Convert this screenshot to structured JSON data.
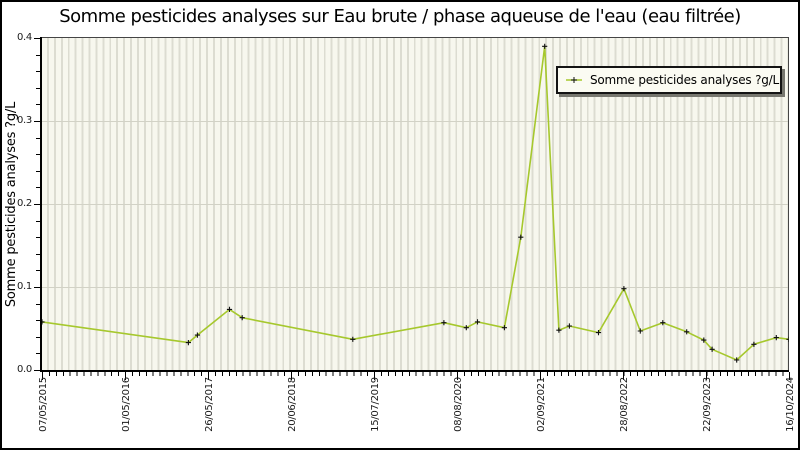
{
  "title": "Somme pesticides analyses sur Eau brute / phase aqueuse de l'eau (eau filtrée)",
  "legend": {
    "series_label": "Somme pesticides analyses ?g/L",
    "position": "top-right"
  },
  "colors": {
    "line": "#a6c82d",
    "marker": "#111111",
    "plot_bg": "#f7f7ee",
    "stripe": "#dcdcd1",
    "grid": "#d2d2c6",
    "axis": "#000000",
    "legend_bg": "#fbfbf2",
    "legend_shadow": "#77776f"
  },
  "chart_data": {
    "type": "line",
    "title": "Somme pesticides analyses sur Eau brute / phase aqueuse de l'eau (eau filtrée)",
    "xlabel": "",
    "ylabel": "Somme pesticides analyses ?g/L",
    "ylim": [
      0.0,
      0.4
    ],
    "y_tick_labels": [
      "0.0",
      "0.1",
      "0.2",
      "0.3",
      "0.4"
    ],
    "y_minor_step": 0.02,
    "grid_y": [
      0.1,
      0.2,
      0.3
    ],
    "x_tick_labels": [
      "07/05/2015",
      "01/05/2016",
      "26/05/2017",
      "20/06/2018",
      "15/07/2019",
      "08/08/2020",
      "02/09/2021",
      "28/08/2022",
      "22/09/2023",
      "16/10/2024"
    ],
    "legend_position": "top-right",
    "grid": "vertical-stripes-minor, horizontal-major",
    "series": [
      {
        "name": "Somme pesticides analyses ?g/L",
        "marker": "plus",
        "points": [
          {
            "x_frac": 0.0,
            "date_est": "07/05/2015",
            "value": 0.058
          },
          {
            "x_frac": 0.196,
            "date_est": "2017-02",
            "value": 0.033
          },
          {
            "x_frac": 0.208,
            "date_est": "2017-04",
            "value": 0.042
          },
          {
            "x_frac": 0.251,
            "date_est": "2017-09",
            "value": 0.073
          },
          {
            "x_frac": 0.268,
            "date_est": "2017-11",
            "value": 0.063
          },
          {
            "x_frac": 0.416,
            "date_est": "2019-04",
            "value": 0.037
          },
          {
            "x_frac": 0.538,
            "date_est": "2020-06",
            "value": 0.057
          },
          {
            "x_frac": 0.568,
            "date_est": "2020-09",
            "value": 0.051
          },
          {
            "x_frac": 0.583,
            "date_est": "2020-11",
            "value": 0.058
          },
          {
            "x_frac": 0.619,
            "date_est": "2021-03",
            "value": 0.051
          },
          {
            "x_frac": 0.641,
            "date_est": "2021-06",
            "value": 0.16
          },
          {
            "x_frac": 0.673,
            "date_est": "02/09/2021",
            "value": 0.39
          },
          {
            "x_frac": 0.692,
            "date_est": "2021-11",
            "value": 0.048
          },
          {
            "x_frac": 0.706,
            "date_est": "2022-01",
            "value": 0.053
          },
          {
            "x_frac": 0.745,
            "date_est": "2022-05",
            "value": 0.045
          },
          {
            "x_frac": 0.779,
            "date_est": "28/08/2022",
            "value": 0.098
          },
          {
            "x_frac": 0.801,
            "date_est": "2022-11",
            "value": 0.047
          },
          {
            "x_frac": 0.831,
            "date_est": "2023-02",
            "value": 0.057
          },
          {
            "x_frac": 0.863,
            "date_est": "2023-06",
            "value": 0.046
          },
          {
            "x_frac": 0.886,
            "date_est": "2023-09",
            "value": 0.036
          },
          {
            "x_frac": 0.897,
            "date_est": "2023-10",
            "value": 0.025
          },
          {
            "x_frac": 0.93,
            "date_est": "2024-02",
            "value": 0.012
          },
          {
            "x_frac": 0.953,
            "date_est": "2024-05",
            "value": 0.031
          },
          {
            "x_frac": 0.983,
            "date_est": "2024-08",
            "value": 0.039
          },
          {
            "x_frac": 1.0,
            "date_est": "16/10/2024",
            "value": 0.037
          }
        ]
      }
    ]
  }
}
